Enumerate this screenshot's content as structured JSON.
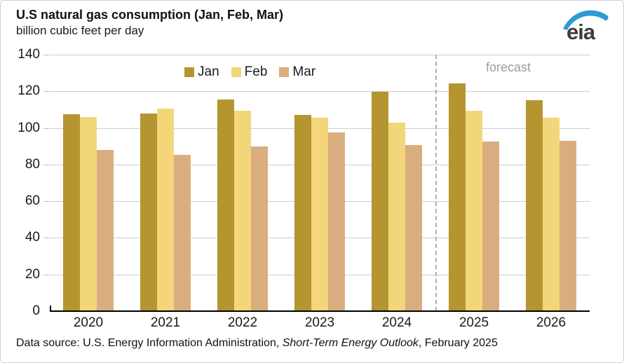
{
  "header": {
    "title": "U.S natural gas consumption (Jan, Feb, Mar)",
    "subtitle": "billion cubic feet per day"
  },
  "logo": {
    "text": "eia"
  },
  "forecast": {
    "label": "forecast"
  },
  "footer": {
    "prefix": "Data source: U.S. Energy Information Administration, ",
    "source_title": "Short-Term Energy Outlook",
    "suffix": ", February 2025"
  },
  "colors": {
    "jan": "#b49530",
    "feb": "#f4d67a",
    "mar": "#daad7f",
    "gridline": "#cdcdcd",
    "axis": "#000000",
    "forecast_line": "#aeaeae",
    "forecast_text": "#9d9d9d",
    "logo_blue": "#2f9ad6",
    "logo_text": "#3d3d3d"
  },
  "chart_data": {
    "type": "bar",
    "title": "U.S natural gas consumption (Jan, Feb, Mar)",
    "ylabel": "billion cubic feet per day",
    "categories": [
      "2020",
      "2021",
      "2022",
      "2023",
      "2024",
      "2025",
      "2026"
    ],
    "series": [
      {
        "name": "Jan",
        "color": "#b49530",
        "values": [
          107.6,
          107.7,
          115.7,
          107.2,
          119.8,
          124.3,
          115.2
        ]
      },
      {
        "name": "Feb",
        "color": "#f4d67a",
        "values": [
          105.8,
          110.6,
          109.3,
          105.6,
          102.9,
          109.4,
          105.7
        ]
      },
      {
        "name": "Mar",
        "color": "#daad7f",
        "values": [
          87.8,
          85.2,
          89.9,
          97.5,
          90.5,
          92.4,
          92.8
        ]
      }
    ],
    "ylim": [
      0,
      140
    ],
    "yticks": [
      0,
      20,
      40,
      60,
      80,
      100,
      120,
      140
    ],
    "grid": true,
    "legend_position": "top-inside-left",
    "forecast_start_index": 5,
    "annotations": [
      {
        "text": "forecast",
        "position": "top-right-of-divider"
      }
    ]
  }
}
